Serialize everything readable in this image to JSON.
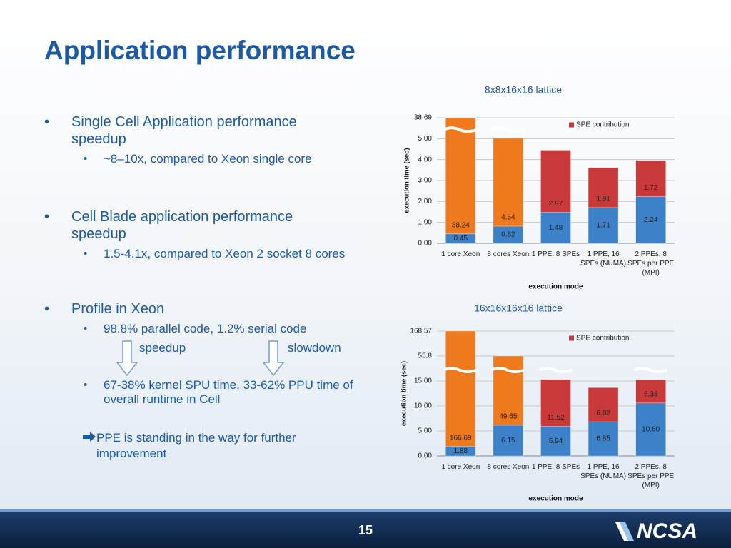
{
  "title": "Application performance",
  "bullets": [
    {
      "text": "Single Cell Application performance speedup",
      "sub": [
        "~8–10x, compared to Xeon single core"
      ]
    },
    {
      "text": "Cell Blade application performance speedup",
      "sub": [
        "1.5-4.1x, compared to Xeon 2 socket 8 cores"
      ]
    },
    {
      "text": "Profile in Xeon",
      "sub": [
        "98.8% parallel code, 1.2% serial code",
        "67-38% kernel SPU time,  33-62% PPU time of overall runtime in Cell"
      ]
    }
  ],
  "arrow_labels": [
    "speedup",
    "slowdown"
  ],
  "note": "PPE is standing in the way for further improvement",
  "page_number": "15",
  "logo_text": "NCSA",
  "chart_data": [
    {
      "type": "bar",
      "stacked": true,
      "title": "8x8x16x16 lattice",
      "x_label": "execution mode",
      "y_label": "execution time (sec)",
      "categories": [
        "1 core Xeon",
        "8 cores Xeon",
        "1 PPE, 8 SPEs",
        "1 PPE, 16 SPEs (NUMA)",
        "2 PPEs, 8 SPEs per PPE (MPI)"
      ],
      "series": [
        {
          "color": "#3d82c9",
          "values": [
            0.45,
            0.82,
            1.48,
            1.71,
            2.24
          ]
        },
        {
          "color": "#ef7a1e",
          "values": [
            38.24,
            4.64,
            null,
            null,
            null
          ]
        },
        {
          "name": "SPE contribution",
          "color": "#c9393a",
          "values": [
            null,
            null,
            2.97,
            1.91,
            1.72
          ]
        }
      ],
      "ylim": [
        0,
        38.69
      ],
      "ybroken": true,
      "yticks": [
        {
          "value": 0,
          "label": "0.00"
        },
        {
          "value": 1,
          "label": "1.00"
        },
        {
          "value": 2,
          "label": "2.00"
        },
        {
          "value": 3,
          "label": "3.00"
        },
        {
          "value": 4,
          "label": "4.00"
        },
        {
          "value": 5,
          "label": "5.00"
        },
        38.69
      ],
      "grid": true,
      "legend": "upper right"
    },
    {
      "type": "bar",
      "stacked": true,
      "title": "16x16x16x16 lattice",
      "x_label": "execution mode",
      "y_label": "execution time (sec)",
      "categories": [
        "1 core Xeon",
        "8 cores Xeon",
        "1 PPE, 8 SPEs",
        "1 PPE, 16 SPEs (NUMA)",
        "2 PPEs, 8 SPEs per PPE (MPI)"
      ],
      "series": [
        {
          "color": "#3d82c9",
          "values": [
            1.88,
            6.15,
            5.94,
            6.85,
            10.6
          ],
          "value_labels": [
            "1.88",
            "6.15",
            "5.94",
            "6.85",
            "10.60"
          ]
        },
        {
          "color": "#ef7a1e",
          "values": [
            166.69,
            49.65,
            null,
            null,
            null
          ]
        },
        {
          "name": "SPE contribution",
          "color": "#c9393a",
          "values": [
            null,
            null,
            11.52,
            6.82,
            6.38
          ]
        }
      ],
      "ylim": [
        0,
        168.57
      ],
      "ybroken": true,
      "yticks": [
        {
          "value": 0,
          "label": "0.00"
        },
        {
          "value": 5,
          "label": "5.00"
        },
        {
          "value": 10,
          "label": "10.00"
        },
        {
          "value": 15,
          "label": "15.00"
        },
        55.8,
        168.57
      ],
      "grid": true,
      "legend": "upper right"
    }
  ]
}
